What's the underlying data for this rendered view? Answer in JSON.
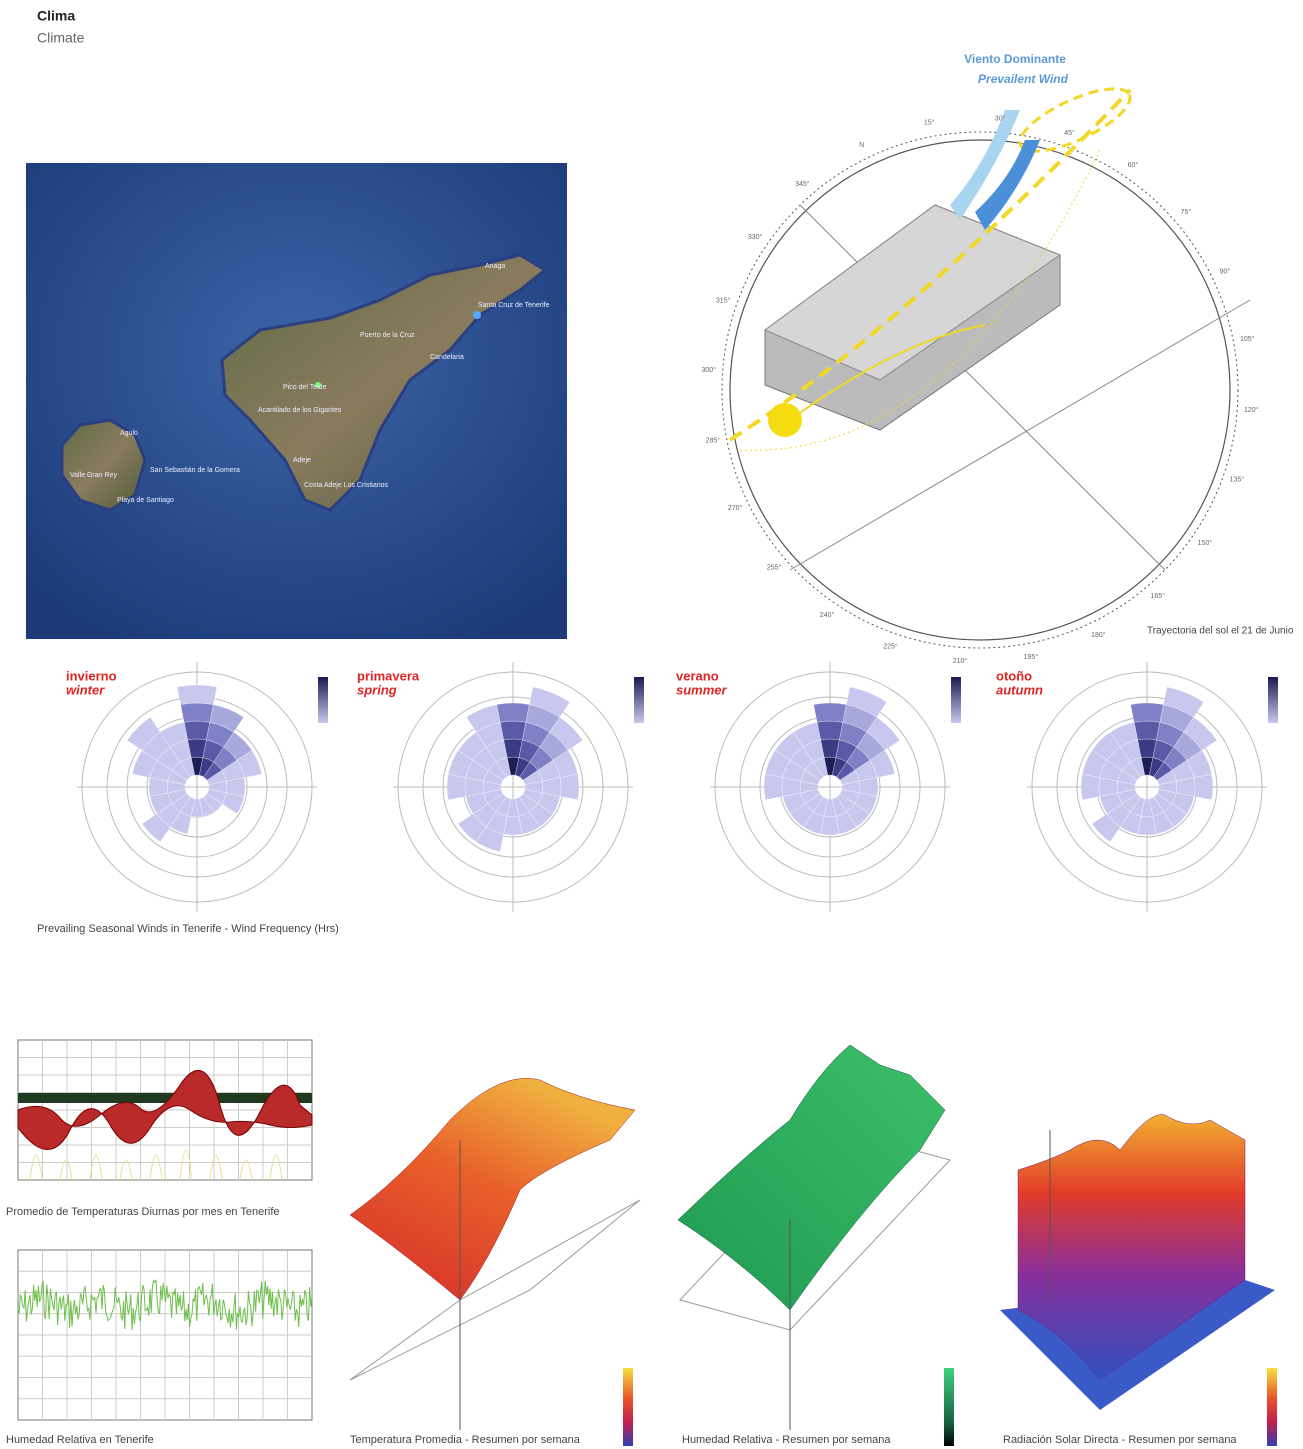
{
  "header": {
    "title": "Clima",
    "subtitle": "Climate"
  },
  "map": {
    "labels": [
      "Anaga",
      "Santa Cruz de Tenerife",
      "Puerto de la Cruz",
      "Candelaria",
      "Pico del Teide",
      "Acantilado de los Gigantes",
      "Adeje",
      "Costa Adeje Los Cristianos",
      "Agulo",
      "Valle Gran Rey",
      "San Sebastián de la Gomera",
      "Playa de Santiago"
    ]
  },
  "sun_path": {
    "wind_title": "Viento Dominante",
    "wind_subtitle": "Prevailent Wind",
    "degree_labels": [
      "N",
      "15°",
      "30°",
      "45°",
      "60°",
      "75°",
      "90°",
      "105°",
      "120°",
      "135°",
      "150°",
      "165°",
      "180°",
      "195°",
      "210°",
      "225°",
      "240°",
      "255°",
      "270°",
      "285°",
      "300°",
      "315°",
      "330°",
      "345°"
    ],
    "caption": "Trayectoria del sol el 21 de Junio"
  },
  "wind_roses": {
    "seasons": [
      {
        "name_es": "invierno",
        "name_en": "winter"
      },
      {
        "name_es": "primavera",
        "name_en": "spring"
      },
      {
        "name_es": "verano",
        "name_en": "summer"
      },
      {
        "name_es": "otoño",
        "name_en": "autumn"
      }
    ],
    "caption": "Prevailing Seasonal Winds in Tenerife - Wind Frequency (Hrs)"
  },
  "charts": {
    "captions": [
      "Promedio de Temperaturas Diurnas por mes en Tenerife",
      "Humedad Relativa en Tenerife",
      "Temperatura Promedia - Resumen por semana",
      "Humedad Relativa - Resumen por semana",
      "Radiación Solar Directa - Resumen por semana"
    ]
  }
}
